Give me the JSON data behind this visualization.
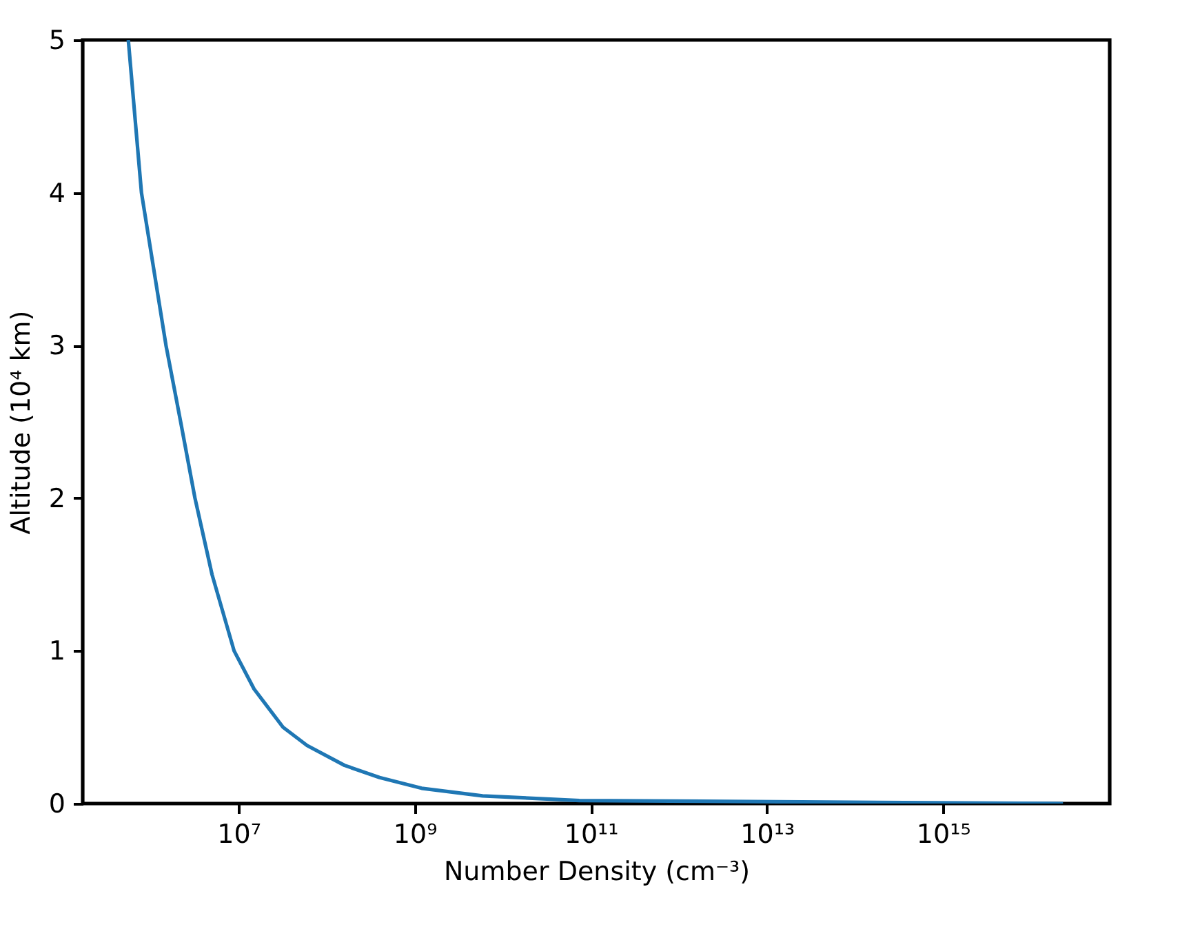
{
  "chart_data": {
    "type": "line",
    "xlabel": "Number Density (cm⁻³)",
    "ylabel": "Altitude (10⁴ km)",
    "log": "x",
    "xlim": [
      170000,
      78000000000000000
    ],
    "ylim": [
      0,
      5
    ],
    "xticks": [
      {
        "value": 10000000,
        "label": "10⁷"
      },
      {
        "value": 1000000000,
        "label": "10⁹"
      },
      {
        "value": 100000000000,
        "label": "10¹¹"
      },
      {
        "value": 10000000000000,
        "label": "10¹³"
      },
      {
        "value": 1000000000000000,
        "label": "10¹⁵"
      }
    ],
    "yticks": [
      0,
      1,
      2,
      3,
      4,
      5
    ],
    "grid": false,
    "marker": "none",
    "line_style": "solid",
    "x": [
      23000000000000000,
      74000000000,
      5900000000,
      1200000000,
      400000000,
      160000000,
      60000000,
      32000000,
      15000000,
      8900000,
      5000000,
      3200000,
      2200000,
      1500000,
      790000,
      560000
    ],
    "series": [
      {
        "color": "#1f77b4",
        "values": [
          0,
          0.02,
          0.05,
          0.1,
          0.17,
          0.25,
          0.38,
          0.5,
          0.75,
          1,
          1.5,
          2,
          2.5,
          3,
          4,
          5
        ]
      }
    ]
  }
}
